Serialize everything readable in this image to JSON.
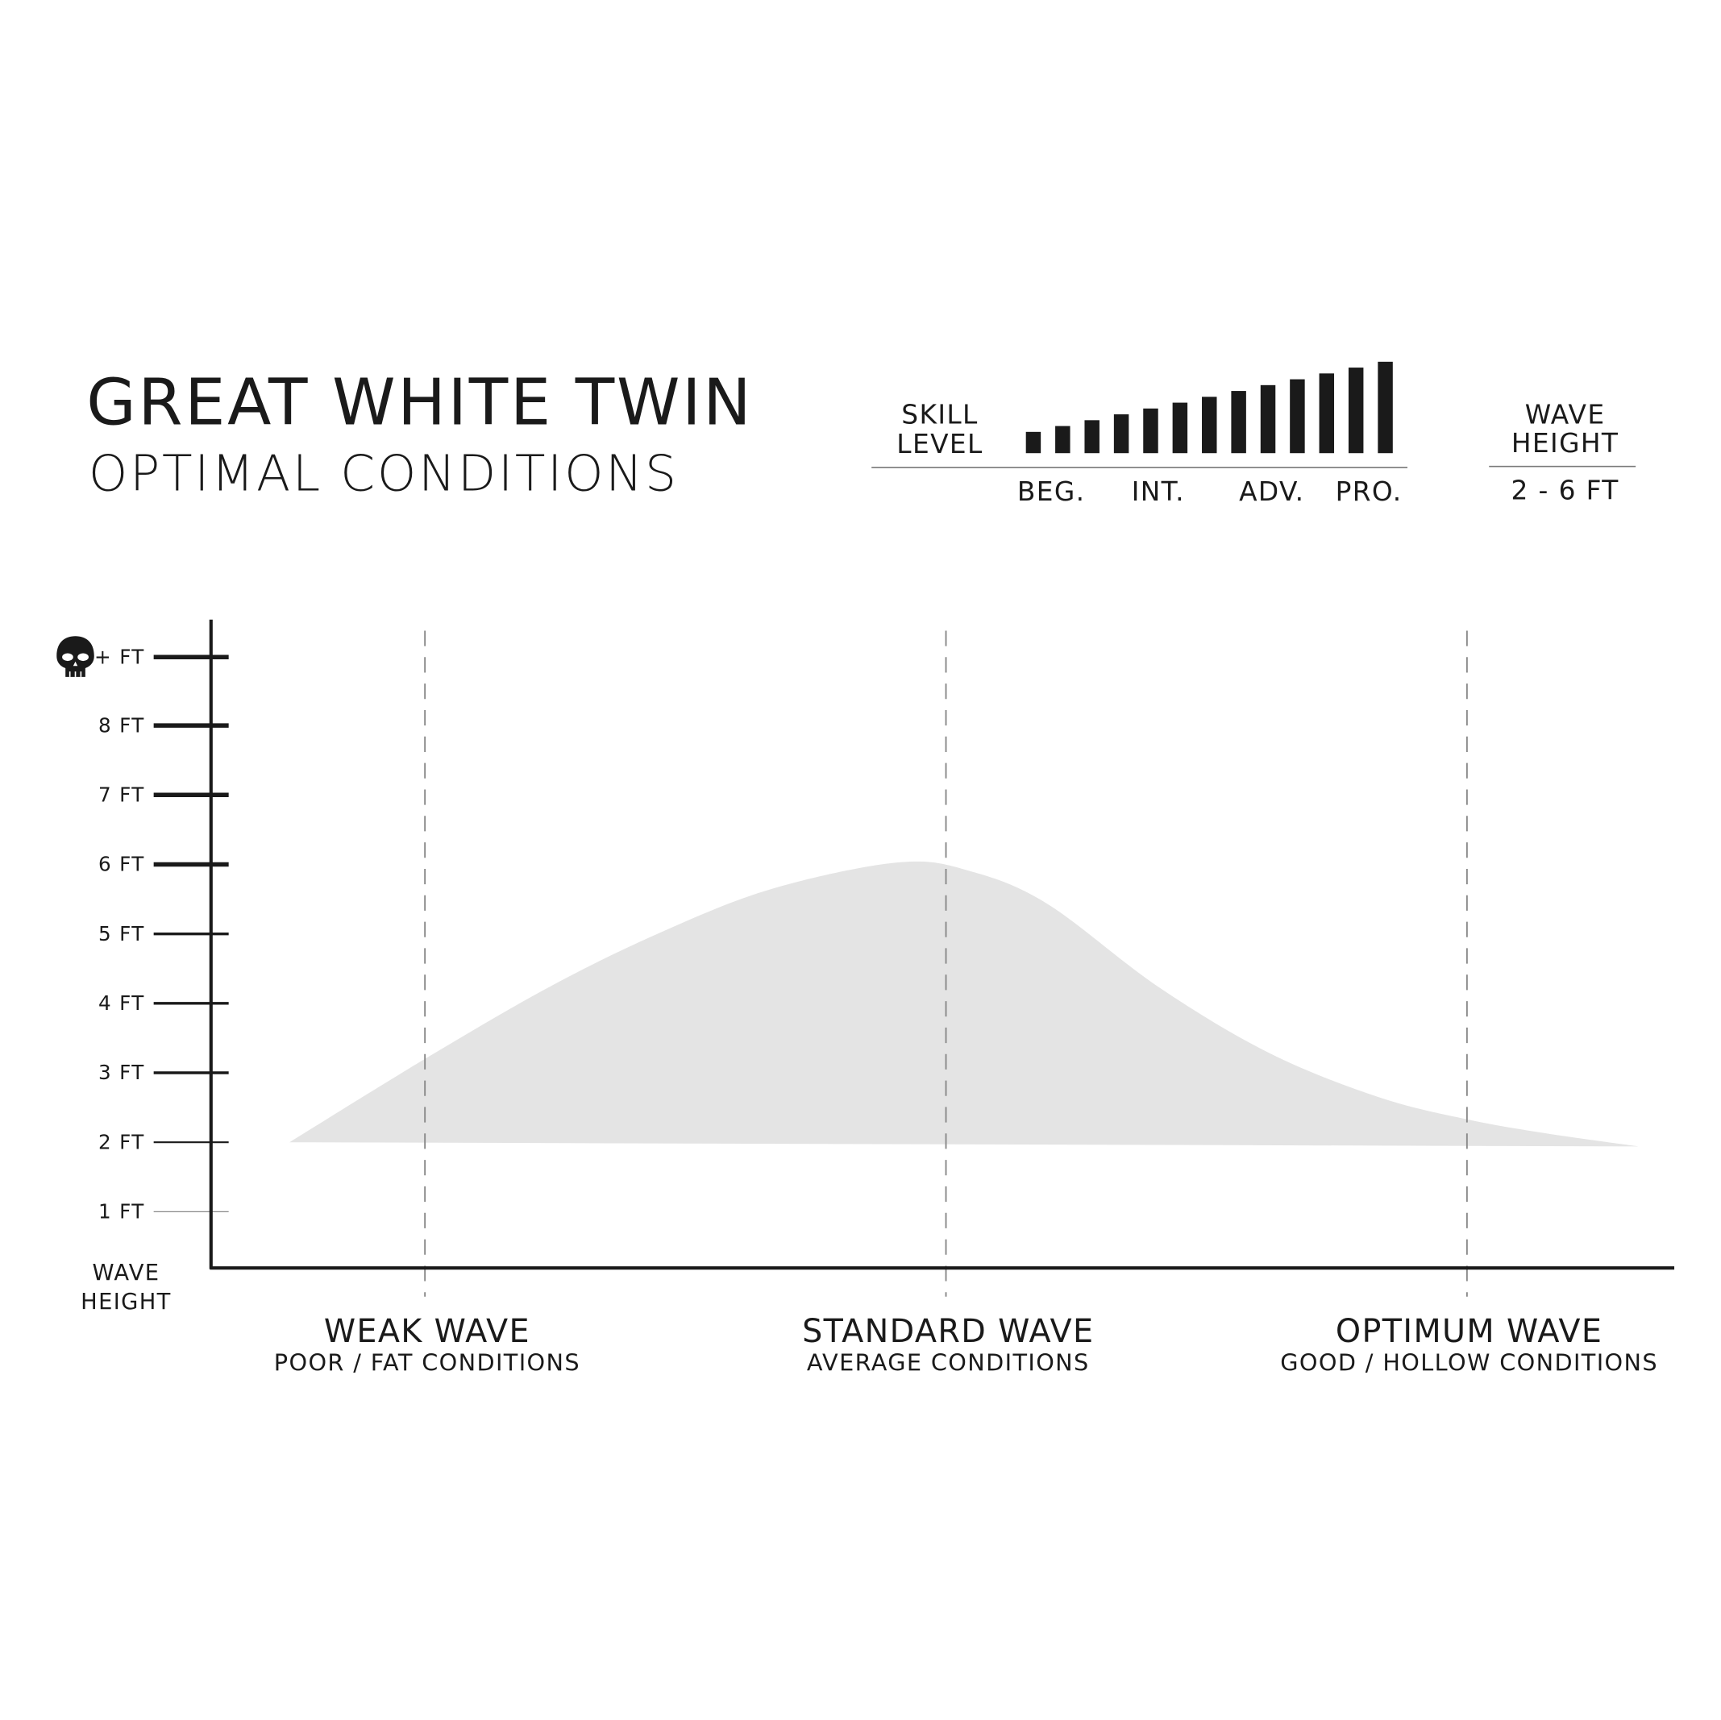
{
  "header": {
    "title": "GREAT WHITE TWIN",
    "subtitle": "OPTIMAL CONDITIONS"
  },
  "skill": {
    "label_line1": "SKILL",
    "label_line2": "LEVEL",
    "bar_levels": [
      1,
      2,
      3,
      4,
      5,
      6,
      7,
      8,
      9,
      10,
      11,
      12,
      13
    ],
    "levels": [
      "BEG.",
      "INT.",
      "ADV.",
      "PRO."
    ]
  },
  "wave_height": {
    "label_line1": "WAVE",
    "label_line2": "HEIGHT",
    "value": "2 - 6 FT"
  },
  "colors": {
    "ink": "#1a1a1a",
    "area": "#e4e4e4",
    "dash": "#8a8a8a"
  },
  "chart_data": {
    "type": "area",
    "ylabel_line1": "WAVE",
    "ylabel_line2": "HEIGHT",
    "ylim": [
      0,
      9
    ],
    "yticks": [
      {
        "value": 1,
        "label": "1 FT"
      },
      {
        "value": 2,
        "label": "2 FT"
      },
      {
        "value": 3,
        "label": "3 FT"
      },
      {
        "value": 4,
        "label": "4 FT"
      },
      {
        "value": 5,
        "label": "5 FT"
      },
      {
        "value": 6,
        "label": "6 FT"
      },
      {
        "value": 7,
        "label": "7 FT"
      },
      {
        "value": 8,
        "label": "8 FT"
      },
      {
        "value": 9,
        "label": "+ FT",
        "icon": "skull-icon"
      }
    ],
    "categories": [
      {
        "label": "WEAK WAVE",
        "sublabel": "POOR / FAT CONDITIONS"
      },
      {
        "label": "STANDARD WAVE",
        "sublabel": "AVERAGE CONDITIONS"
      },
      {
        "label": "OPTIMUM WAVE",
        "sublabel": "GOOD / HOLLOW CONDITIONS"
      }
    ],
    "grid": "dashed vertical at categories",
    "area_upper": [
      [
        -0.26,
        2.0
      ],
      [
        0,
        3.2
      ],
      [
        0.24,
        4.24
      ],
      [
        0.455,
        5.03
      ],
      [
        0.667,
        5.65
      ],
      [
        0.91,
        6.03
      ],
      [
        1.048,
        5.9
      ],
      [
        1.195,
        5.43
      ],
      [
        1.407,
        4.24
      ],
      [
        1.619,
        3.29
      ],
      [
        1.83,
        2.65
      ],
      [
        2.0,
        2.33
      ],
      [
        2.15,
        2.13
      ],
      [
        2.33,
        1.94
      ]
    ],
    "area_lower": [
      [
        2.33,
        1.94
      ],
      [
        -0.26,
        2.0
      ]
    ]
  }
}
